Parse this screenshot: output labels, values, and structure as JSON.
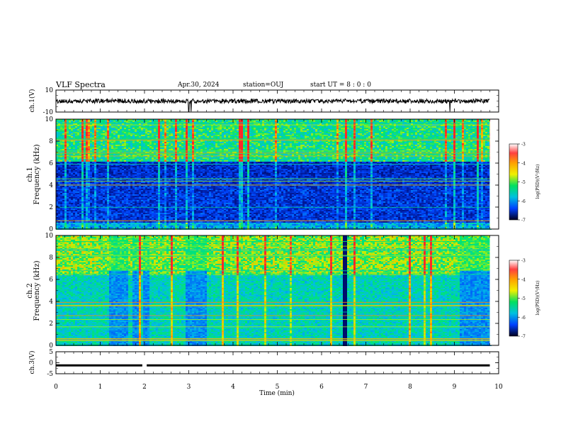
{
  "header": {
    "title": "VLF Spectra",
    "date": "Apr.30, 2024",
    "station": "station=OUJ",
    "start": "start UT =  8 : 0  : 0"
  },
  "colorbar": {
    "label": "log(PSD)(V²/Hz)",
    "ticks": [
      -3,
      -4,
      -5,
      -6,
      -7
    ]
  },
  "chart_data": [
    {
      "type": "line",
      "name": "ch1-waveform",
      "ylabel": "ch.1(V)",
      "xlim": [
        0,
        10
      ],
      "ylim": [
        -10,
        10
      ],
      "yticks": [
        10,
        -10
      ],
      "baseline": 0,
      "active_until_min": 9.8,
      "spikes_min": [
        3.0,
        3.05,
        8.9
      ]
    },
    {
      "type": "heatmap",
      "name": "ch1-spectrogram",
      "ylabel_top": "ch.1",
      "ylabel": "Frequency (kHz)",
      "xlim": [
        0,
        10
      ],
      "ylim": [
        0,
        10
      ],
      "yticks": [
        0,
        2,
        4,
        6,
        8,
        10
      ],
      "zlim": [
        -7,
        -3
      ],
      "zlabel": "log(PSD)(V²/Hz)",
      "active_until_min": 9.8
    },
    {
      "type": "heatmap",
      "name": "ch2-spectrogram",
      "ylabel_top": "ch.2",
      "ylabel": "Frequency (kHz)",
      "xlim": [
        0,
        10
      ],
      "ylim": [
        0,
        10
      ],
      "yticks": [
        0,
        2,
        4,
        6,
        8,
        10
      ],
      "zlim": [
        -7,
        -3
      ],
      "zlabel": "log(PSD)(V²/Hz)",
      "active_until_min": 9.8,
      "quiet_segments_min": [
        [
          1.2,
          1.6
        ],
        [
          1.7,
          1.85
        ],
        [
          1.95,
          2.1
        ],
        [
          2.9,
          3.4
        ],
        [
          6.45,
          6.55
        ],
        [
          9.1,
          9.8
        ]
      ]
    },
    {
      "type": "line",
      "name": "ch3-waveform",
      "ylabel": "ch.3(V)",
      "xlabel": "Time (min)",
      "xlim": [
        0,
        10
      ],
      "ylim": [
        -5,
        5
      ],
      "yticks": [
        5,
        0,
        -5
      ],
      "xticks": [
        0,
        1,
        2,
        3,
        4,
        5,
        6,
        7,
        8,
        9,
        10
      ],
      "baseline": -1.2,
      "active_until_min": 9.8,
      "gap_min": [
        1.95,
        2.05
      ]
    }
  ]
}
